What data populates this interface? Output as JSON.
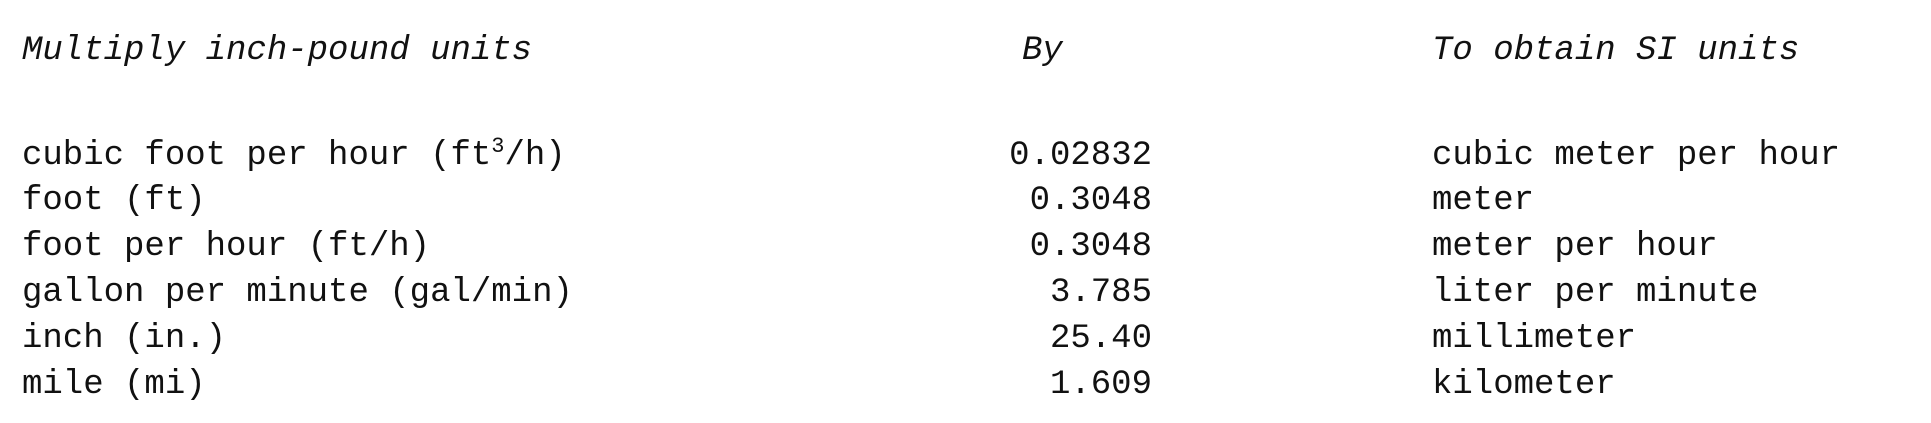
{
  "headers": {
    "from": "Multiply inch-pound units",
    "by": "By",
    "to": "To obtain SI units"
  },
  "rows": [
    {
      "from_pre": "cubic foot per hour (ft",
      "from_sup": "3",
      "from_post": "/h)",
      "by": "0.02832",
      "to": "cubic meter per hour"
    },
    {
      "from": "foot (ft)",
      "by": "0.3048",
      "to": "meter"
    },
    {
      "from": "foot per hour (ft/h)",
      "by": "0.3048",
      "to": "meter per hour"
    },
    {
      "from": "gallon per minute (gal/min)",
      "by": "3.785",
      "to": "liter per minute"
    },
    {
      "from": "inch (in.)",
      "by": "25.40",
      "to": "millimeter"
    },
    {
      "from": "mile (mi)",
      "by": "1.609",
      "to": "kilometer"
    }
  ]
}
